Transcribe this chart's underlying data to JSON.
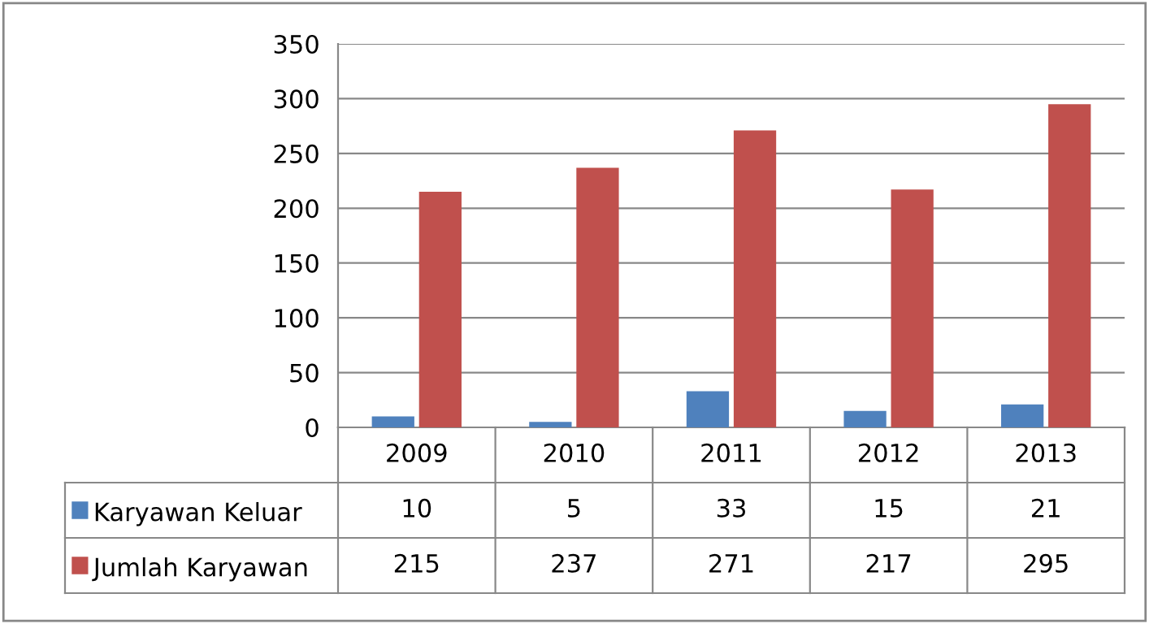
{
  "chart_data": {
    "type": "bar",
    "categories": [
      "2009",
      "2010",
      "2011",
      "2012",
      "2013"
    ],
    "series": [
      {
        "name": "Karyawan Keluar",
        "color": "#4f81bd",
        "values": [
          10,
          5,
          33,
          15,
          21
        ]
      },
      {
        "name": "Jumlah Karyawan",
        "color": "#c0504d",
        "values": [
          215,
          237,
          271,
          217,
          295
        ]
      }
    ],
    "ylim": [
      0,
      350
    ],
    "yticks": [
      0,
      50,
      100,
      150,
      200,
      250,
      300,
      350
    ],
    "grid": "y",
    "legend": "bottom",
    "data_labels": true
  }
}
